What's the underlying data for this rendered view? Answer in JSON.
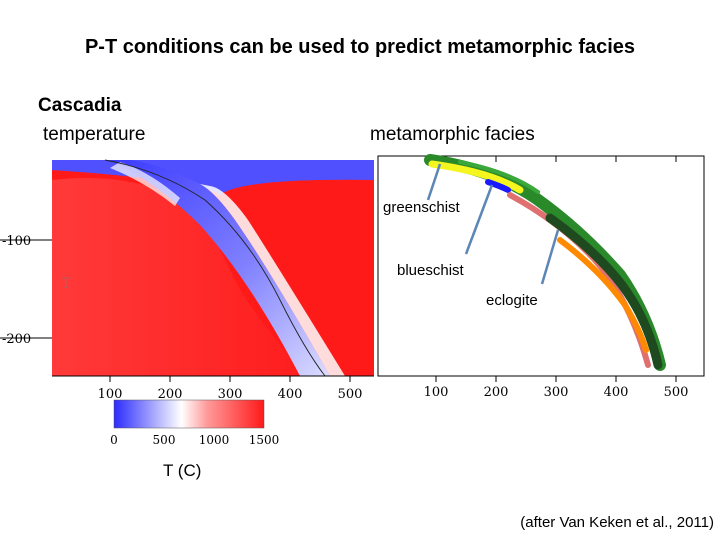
{
  "title": "P-T conditions can be used to predict metamorphic facies",
  "region": "Cascadia",
  "left_heading": "temperature",
  "right_heading": "metamorphic facies",
  "temperature_panel": {
    "marker": "T",
    "y_ticks": [
      "-100",
      "-200"
    ],
    "x_ticks": [
      "100",
      "200",
      "300",
      "400",
      "500"
    ]
  },
  "facies_panel": {
    "x_ticks": [
      "100",
      "200",
      "300",
      "400",
      "500"
    ],
    "labels": {
      "greenschist": "greenschist",
      "blueschist": "blueschist",
      "eclogite": "eclogite"
    }
  },
  "colorbar": {
    "ticks": [
      "0",
      "500",
      "1000",
      "1500"
    ],
    "unit_label": "T (C)",
    "colors": {
      "cold": "#2b2bff",
      "mid": "#ffffff",
      "hot": "#ff1a1a"
    }
  },
  "credit": "(after Van Keken et al., 2011)",
  "colors": {
    "slab_cold": "#3030ff",
    "mantle_hot": "#ff1414",
    "facies_greenschist": "#2a8a2a",
    "facies_blueschist": "#1a1aff",
    "facies_eclogite": "#ff8a00",
    "facies_dark": "#1f4a1f",
    "facies_pink": "#e07070",
    "facies_yellow": "#f5f520",
    "callout_line": "#5b86b5"
  }
}
